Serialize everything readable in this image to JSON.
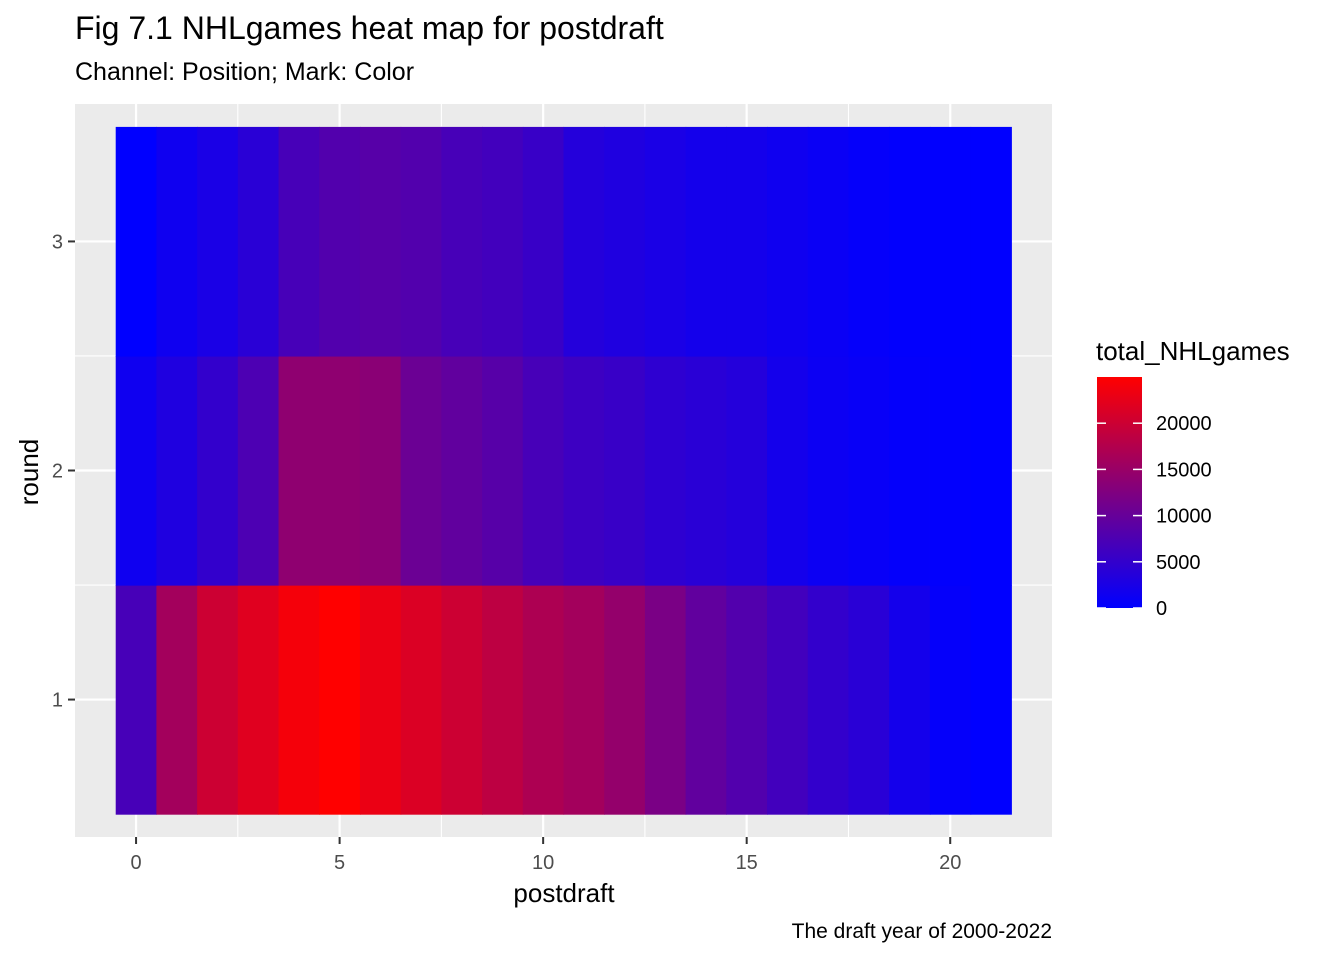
{
  "chart_data": {
    "type": "heatmap",
    "title": "Fig 7.1 NHLgames heat map for postdraft",
    "subtitle": "Channel: Position; Mark: Color",
    "caption": "The draft year of 2000-2022",
    "xlabel": "postdraft",
    "ylabel": "round",
    "x": [
      0,
      1,
      2,
      3,
      4,
      5,
      6,
      7,
      8,
      9,
      10,
      11,
      12,
      13,
      14,
      15,
      16,
      17,
      18,
      19,
      20,
      21
    ],
    "y": [
      1,
      2,
      3
    ],
    "xlim": [
      -1.5,
      22.5
    ],
    "ylim": [
      0.4,
      3.6
    ],
    "x_ticks": [
      0,
      5,
      10,
      15,
      20
    ],
    "y_ticks": [
      1,
      2,
      3
    ],
    "color_scale": {
      "low": "#0000FF",
      "high": "#FF0000",
      "min": 0,
      "max": 25000
    },
    "legend": {
      "title": "total_NHLgames",
      "position": "right",
      "breaks": [
        0,
        5000,
        10000,
        15000,
        20000
      ]
    },
    "grid": true,
    "values": [
      [
        7000,
        16000,
        20000,
        22000,
        24000,
        25000,
        23000,
        21500,
        20000,
        18500,
        17000,
        16000,
        14500,
        12000,
        9500,
        8000,
        6500,
        5000,
        4000,
        2000,
        500,
        0
      ],
      [
        1500,
        3000,
        5000,
        7500,
        14000,
        14000,
        13500,
        10500,
        9500,
        8500,
        7000,
        6000,
        5500,
        4500,
        4000,
        3500,
        2000,
        1200,
        800,
        400,
        200,
        0
      ],
      [
        0,
        1500,
        2500,
        4000,
        7000,
        8000,
        8500,
        8000,
        7000,
        6500,
        5500,
        3500,
        3000,
        2500,
        2000,
        2000,
        1500,
        1000,
        500,
        200,
        100,
        0
      ]
    ]
  }
}
